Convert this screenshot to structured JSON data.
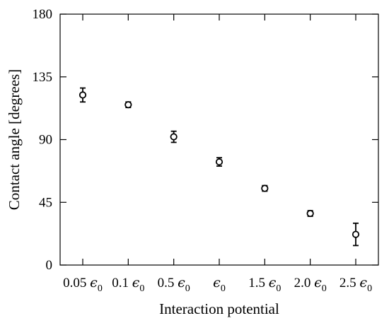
{
  "chart_data": {
    "type": "scatter",
    "xlabel": "Interaction potential",
    "ylabel": "Contact angle [degrees]",
    "ylim": [
      0,
      180
    ],
    "yticks": [
      0,
      45,
      90,
      135,
      180
    ],
    "categories": [
      {
        "coef": "0.05",
        "sym": "ϵ",
        "sub": "0"
      },
      {
        "coef": "0.1",
        "sym": "ϵ",
        "sub": "0"
      },
      {
        "coef": "0.5",
        "sym": "ϵ",
        "sub": "0"
      },
      {
        "coef": "",
        "sym": "ϵ",
        "sub": "0"
      },
      {
        "coef": "1.5",
        "sym": "ϵ",
        "sub": "0"
      },
      {
        "coef": "2.0",
        "sym": "ϵ",
        "sub": "0"
      },
      {
        "coef": "2.5",
        "sym": "ϵ",
        "sub": "0"
      }
    ],
    "values": [
      122,
      115,
      92,
      74,
      55,
      37,
      22
    ],
    "errors": [
      5,
      2,
      4,
      3,
      2,
      2,
      8
    ],
    "grid": false,
    "marker": "open-circle",
    "color": "#000000"
  }
}
